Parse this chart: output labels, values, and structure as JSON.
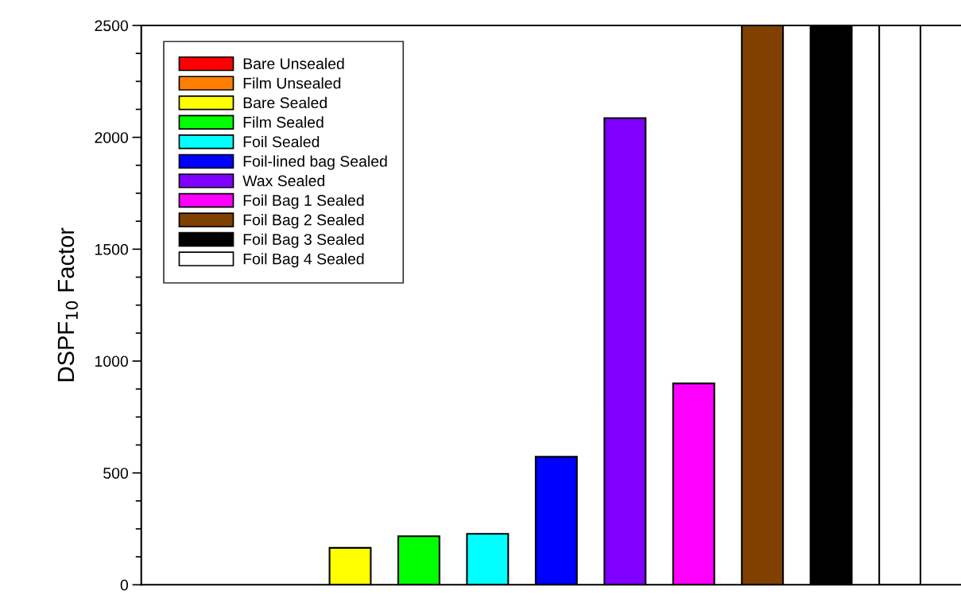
{
  "chart_data": {
    "type": "bar",
    "ylabel": "DSPF$_{10}$ Factor",
    "categories": [
      null,
      null,
      null,
      null,
      null,
      null,
      null,
      null,
      null,
      null,
      null
    ],
    "series": [
      {
        "name": "Bare Unsealed",
        "color": "#ff0000",
        "values": [
          null,
          null,
          null,
          null,
          null,
          null,
          null,
          null,
          null,
          null,
          null
        ]
      },
      {
        "name": "Film Unsealed",
        "color": "#ff8000",
        "values": [
          null,
          null,
          null,
          null,
          null,
          null,
          null,
          null,
          null,
          null,
          null
        ]
      },
      {
        "name": "Bare Sealed",
        "color": "#ffff00",
        "values": [
          null,
          null,
          165,
          null,
          null,
          null,
          null,
          null,
          null,
          null,
          null
        ]
      },
      {
        "name": "Film Sealed",
        "color": "#00ff00",
        "values": [
          null,
          null,
          null,
          217,
          null,
          null,
          null,
          null,
          null,
          null,
          null
        ]
      },
      {
        "name": "Foil Sealed",
        "color": "#00ffff",
        "values": [
          null,
          null,
          null,
          null,
          228,
          null,
          null,
          null,
          null,
          null,
          null
        ]
      },
      {
        "name": "Foil-lined bag Sealed",
        "color": "#0000ff",
        "values": [
          null,
          null,
          null,
          null,
          null,
          572,
          null,
          null,
          null,
          null,
          null
        ]
      },
      {
        "name": "Wax Sealed",
        "color": "#8000ff",
        "values": [
          null,
          null,
          null,
          null,
          null,
          null,
          2086,
          null,
          null,
          null,
          null
        ]
      },
      {
        "name": "Foil Bag 1 Sealed",
        "color": "#ff00ff",
        "values": [
          null,
          null,
          null,
          null,
          null,
          null,
          null,
          900,
          null,
          null,
          null
        ]
      },
      {
        "name": "Foil Bag 2 Sealed",
        "color": "#804000",
        "values": [
          null,
          null,
          null,
          null,
          null,
          null,
          null,
          null,
          2500,
          null,
          null
        ]
      },
      {
        "name": "Foil Bag 3 Sealed",
        "color": "#000000",
        "values": [
          null,
          null,
          null,
          null,
          null,
          null,
          null,
          null,
          null,
          2500,
          null
        ]
      },
      {
        "name": "Foil Bag 4 Sealed",
        "color": "#ffffff",
        "values": [
          null,
          null,
          null,
          null,
          null,
          null,
          null,
          null,
          null,
          null,
          2500
        ]
      }
    ],
    "ylim": [
      0,
      2500
    ],
    "yticks": [
      0,
      {
        "value": 125,
        "label": null
      },
      {
        "value": 250,
        "label": null
      },
      {
        "value": 375,
        "label": null
      },
      500,
      {
        "value": 625,
        "label": null
      },
      {
        "value": 750,
        "label": null
      },
      {
        "value": 875,
        "label": null
      },
      1000,
      {
        "value": 1125,
        "label": null
      },
      {
        "value": 1250,
        "label": null
      },
      {
        "value": 1375,
        "label": null
      },
      1500,
      {
        "value": 1625,
        "label": null
      },
      {
        "value": 1750,
        "label": null
      },
      {
        "value": 1875,
        "label": null
      },
      2000,
      {
        "value": 2125,
        "label": null
      },
      {
        "value": 2250,
        "label": null
      },
      {
        "value": 2375,
        "label": null
      },
      2500
    ],
    "legend": "top left",
    "tick_labels": "y",
    "grid": false
  }
}
